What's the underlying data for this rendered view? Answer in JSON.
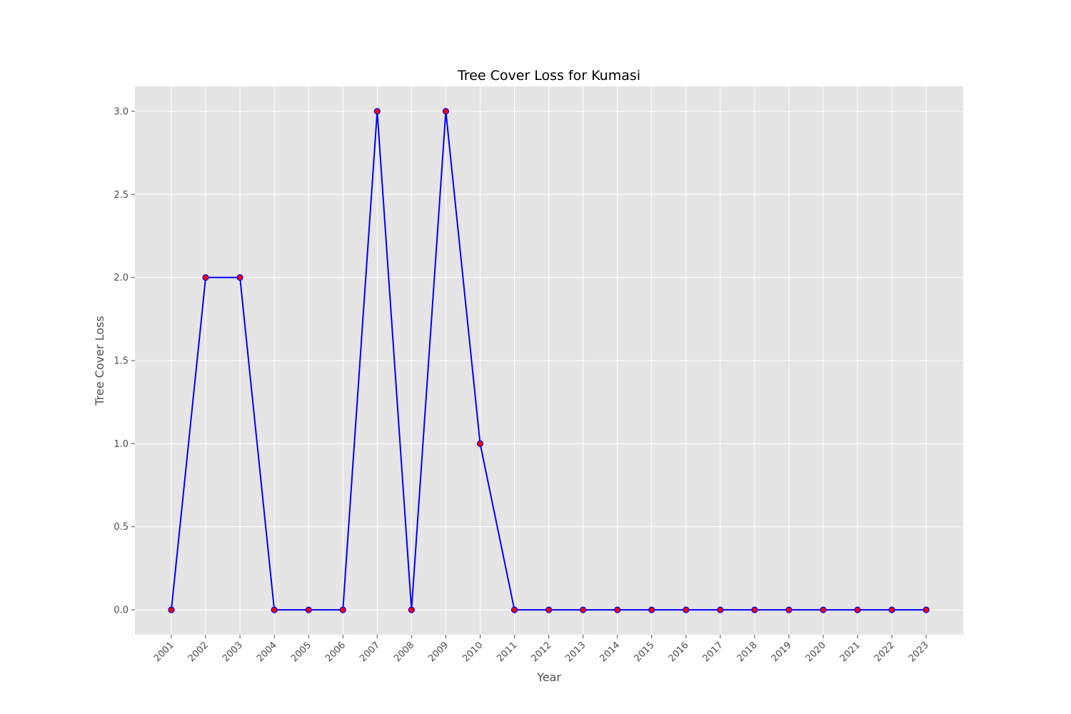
{
  "chart_data": {
    "type": "line",
    "title": "Tree Cover Loss for Kumasi",
    "xlabel": "Year",
    "ylabel": "Tree Cover Loss",
    "x": [
      "2001",
      "2002",
      "2003",
      "2004",
      "2005",
      "2006",
      "2007",
      "2008",
      "2009",
      "2010",
      "2011",
      "2012",
      "2013",
      "2014",
      "2015",
      "2016",
      "2017",
      "2018",
      "2019",
      "2020",
      "2021",
      "2022",
      "2023"
    ],
    "y": [
      0,
      2,
      2,
      0,
      0,
      0,
      3,
      0,
      3,
      1,
      0,
      0,
      0,
      0,
      0,
      0,
      0,
      0,
      0,
      0,
      0,
      0,
      0
    ],
    "yticks": [
      "0.0",
      "0.5",
      "1.0",
      "1.5",
      "2.0",
      "2.5",
      "3.0"
    ],
    "ylim": [
      -0.15,
      3.15
    ],
    "grid": true,
    "colors": {
      "background": "#e5e5e5",
      "grid": "#ffffff",
      "line": "#0000ff",
      "marker_face": "#ff0000",
      "marker_edge": "#0000ff"
    }
  }
}
